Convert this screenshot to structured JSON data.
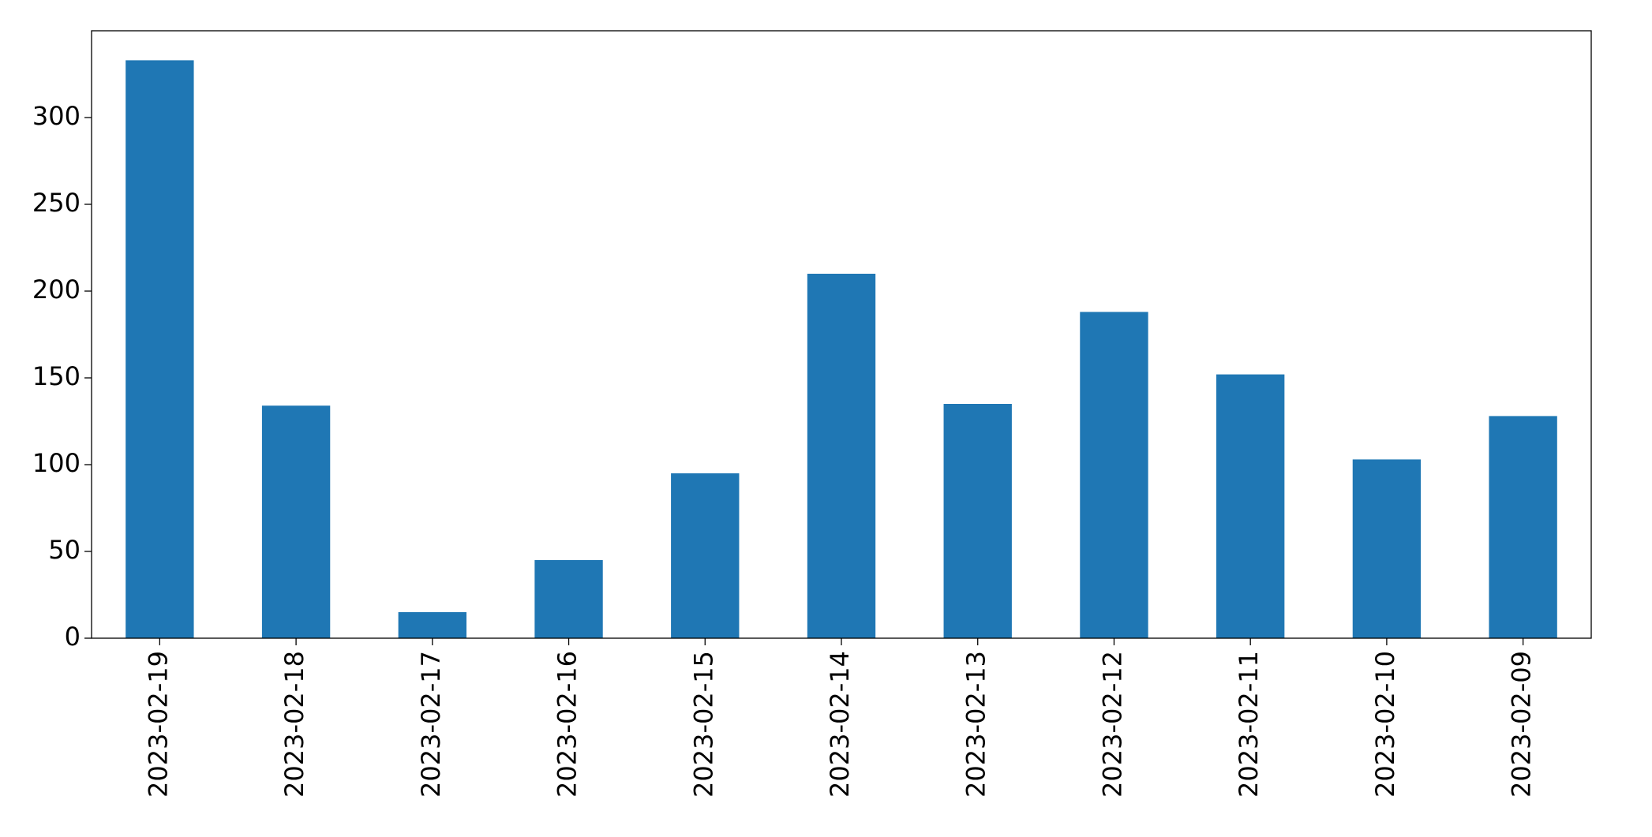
{
  "chart_data": {
    "type": "bar",
    "categories": [
      "2023-02-19",
      "2023-02-18",
      "2023-02-17",
      "2023-02-16",
      "2023-02-15",
      "2023-02-14",
      "2023-02-13",
      "2023-02-12",
      "2023-02-11",
      "2023-02-10",
      "2023-02-09"
    ],
    "values": [
      333,
      134,
      15,
      45,
      95,
      210,
      135,
      188,
      152,
      103,
      128
    ],
    "color": "#1f77b4",
    "ylim": [
      0,
      350
    ],
    "yticks": [
      0,
      50,
      100,
      150,
      200,
      250,
      300
    ],
    "grid": false
  }
}
